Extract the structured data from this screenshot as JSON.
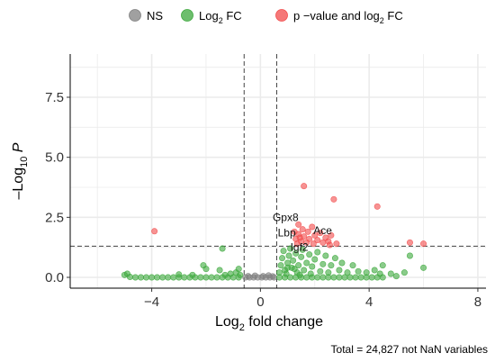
{
  "chart_data": {
    "type": "scatter",
    "xlabel_main": "Log",
    "xlabel_sub": "2",
    "xlabel_tail": " fold change",
    "ylabel_lead": "–Log",
    "ylabel_sub": "10",
    "ylabel_tail": " P",
    "caption": "Total = 24,827 not NaN variables",
    "xlim": [
      -7,
      8.3
    ],
    "ylim": [
      -0.45,
      9.3
    ],
    "x_ticks": [
      -4,
      0,
      4,
      8
    ],
    "x_tick_labels": [
      "−4",
      "0",
      "4",
      "8"
    ],
    "y_ticks": [
      0.0,
      2.5,
      5.0,
      7.5
    ],
    "y_tick_labels": [
      "0.0",
      "2.5",
      "5.0",
      "7.5"
    ],
    "fc_cutoffs": [
      -0.6,
      0.6
    ],
    "p_cutoff": 1.3,
    "grid": true,
    "legend_position": "top",
    "legend": [
      {
        "key": "ns",
        "parts": [
          [
            "NS",
            ""
          ]
        ],
        "color": "#808080"
      },
      {
        "key": "fc",
        "parts": [
          [
            "Log",
            ""
          ],
          [
            "2",
            "sub"
          ],
          [
            " FC",
            ""
          ]
        ],
        "color": "#3ca83c"
      },
      {
        "key": "both",
        "parts": [
          [
            "p −value and log",
            ""
          ],
          [
            "2",
            "sub"
          ],
          [
            " FC",
            ""
          ]
        ],
        "color": "#f24b4b"
      }
    ],
    "colors": {
      "ns": "#808080",
      "fc": "#3ca83c",
      "both": "#f24b4b",
      "grid": "#ebebeb",
      "cutoff": "#444444"
    },
    "series": [
      {
        "name": "NS",
        "color": "#808080",
        "points": [
          [
            -0.55,
            0.0
          ],
          [
            -0.4,
            0.0
          ],
          [
            -0.25,
            0.0
          ],
          [
            -0.1,
            0.0
          ],
          [
            0.05,
            0.0
          ],
          [
            0.2,
            0.0
          ],
          [
            0.35,
            0.0
          ],
          [
            0.5,
            0.0
          ],
          [
            -0.45,
            0.05
          ],
          [
            -0.2,
            0.07
          ],
          [
            0.1,
            0.05
          ],
          [
            0.3,
            0.08
          ],
          [
            0.45,
            0.04
          ]
        ]
      },
      {
        "name": "Log2 FC",
        "color": "#3ca83c",
        "points": [
          [
            -5.0,
            0.1
          ],
          [
            -4.8,
            0.02
          ],
          [
            -4.6,
            0.0
          ],
          [
            -4.4,
            0.0
          ],
          [
            -4.2,
            0.0
          ],
          [
            -4.0,
            0.0
          ],
          [
            -3.8,
            0.0
          ],
          [
            -3.6,
            0.0
          ],
          [
            -3.4,
            0.0
          ],
          [
            -3.2,
            0.0
          ],
          [
            -3.0,
            0.0
          ],
          [
            -2.8,
            0.0
          ],
          [
            -2.6,
            0.0
          ],
          [
            -2.4,
            0.0
          ],
          [
            -2.2,
            0.0
          ],
          [
            -2.0,
            0.0
          ],
          [
            -1.8,
            0.0
          ],
          [
            -1.6,
            0.0
          ],
          [
            -1.4,
            0.0
          ],
          [
            -1.2,
            0.0
          ],
          [
            -1.0,
            0.0
          ],
          [
            -0.8,
            0.0
          ],
          [
            -4.9,
            0.15
          ],
          [
            -3.0,
            0.12
          ],
          [
            -2.5,
            0.1
          ],
          [
            -2.1,
            0.5
          ],
          [
            -2.0,
            0.35
          ],
          [
            -1.5,
            0.3
          ],
          [
            -1.3,
            0.1
          ],
          [
            -1.1,
            0.15
          ],
          [
            -0.9,
            0.2
          ],
          [
            -0.75,
            0.1
          ],
          [
            -1.4,
            1.2
          ],
          [
            -0.8,
            0.35
          ],
          [
            0.7,
            0.0
          ],
          [
            0.9,
            0.0
          ],
          [
            1.1,
            0.0
          ],
          [
            1.3,
            0.0
          ],
          [
            1.5,
            0.0
          ],
          [
            1.7,
            0.0
          ],
          [
            1.9,
            0.0
          ],
          [
            2.1,
            0.0
          ],
          [
            2.3,
            0.0
          ],
          [
            2.5,
            0.0
          ],
          [
            2.7,
            0.0
          ],
          [
            2.9,
            0.0
          ],
          [
            3.1,
            0.0
          ],
          [
            3.3,
            0.0
          ],
          [
            3.5,
            0.0
          ],
          [
            3.7,
            0.0
          ],
          [
            3.9,
            0.0
          ],
          [
            4.1,
            0.0
          ],
          [
            4.3,
            0.0
          ],
          [
            4.5,
            0.0
          ],
          [
            0.7,
            0.2
          ],
          [
            0.75,
            0.5
          ],
          [
            0.8,
            0.8
          ],
          [
            0.85,
            1.1
          ],
          [
            0.9,
            0.3
          ],
          [
            1.0,
            0.6
          ],
          [
            1.05,
            0.9
          ],
          [
            1.1,
            1.2
          ],
          [
            1.15,
            0.4
          ],
          [
            1.2,
            0.7
          ],
          [
            1.3,
            1.0
          ],
          [
            1.35,
            0.2
          ],
          [
            1.4,
            0.5
          ],
          [
            1.5,
            0.85
          ],
          [
            1.55,
            1.15
          ],
          [
            1.6,
            0.3
          ],
          [
            1.7,
            0.6
          ],
          [
            1.8,
            0.95
          ],
          [
            1.85,
            0.15
          ],
          [
            1.9,
            0.45
          ],
          [
            2.0,
            0.75
          ],
          [
            2.1,
            1.05
          ],
          [
            2.2,
            0.25
          ],
          [
            2.3,
            0.55
          ],
          [
            2.4,
            0.9
          ],
          [
            2.5,
            0.2
          ],
          [
            2.6,
            0.5
          ],
          [
            2.75,
            0.8
          ],
          [
            2.9,
            0.3
          ],
          [
            3.0,
            0.6
          ],
          [
            3.2,
            0.2
          ],
          [
            3.4,
            0.5
          ],
          [
            3.6,
            0.25
          ],
          [
            3.9,
            0.2
          ],
          [
            4.2,
            0.3
          ],
          [
            4.4,
            0.15
          ],
          [
            4.5,
            0.5
          ],
          [
            4.8,
            0.15
          ],
          [
            5.0,
            0.05
          ],
          [
            5.3,
            0.2
          ],
          [
            5.5,
            0.9
          ],
          [
            6.0,
            0.4
          ],
          [
            1.0,
            0.4
          ],
          [
            1.25,
            0.35
          ],
          [
            0.95,
            0.15
          ],
          [
            1.45,
            0.1
          ]
        ]
      },
      {
        "name": "p-value and log2 FC",
        "color": "#f24b4b",
        "points": [
          [
            -3.9,
            1.92
          ],
          [
            1.6,
            3.8
          ],
          [
            2.7,
            3.25
          ],
          [
            4.3,
            2.95
          ],
          [
            1.4,
            2.2
          ],
          [
            1.25,
            1.9
          ],
          [
            1.3,
            1.6
          ],
          [
            1.4,
            1.8
          ],
          [
            1.5,
            1.5
          ],
          [
            1.55,
            2.0
          ],
          [
            1.6,
            1.7
          ],
          [
            1.7,
            1.45
          ],
          [
            1.75,
            1.9
          ],
          [
            1.8,
            1.6
          ],
          [
            1.9,
            2.1
          ],
          [
            1.95,
            1.4
          ],
          [
            2.0,
            1.75
          ],
          [
            2.1,
            1.55
          ],
          [
            2.2,
            1.85
          ],
          [
            2.3,
            1.45
          ],
          [
            2.4,
            1.65
          ],
          [
            2.5,
            1.5
          ],
          [
            2.55,
            1.35
          ],
          [
            2.6,
            1.75
          ],
          [
            2.8,
            1.4
          ],
          [
            1.35,
            1.4
          ],
          [
            1.45,
            1.65
          ],
          [
            5.5,
            1.45
          ],
          [
            6.0,
            1.4
          ]
        ]
      }
    ],
    "annotations": [
      {
        "text": "Gpx8",
        "x": 1.4,
        "y": 2.2,
        "ha": "end"
      },
      {
        "text": "Ace",
        "x": 1.95,
        "y": 1.65,
        "ha": "start"
      },
      {
        "text": "Lbp",
        "x": 1.3,
        "y": 1.55,
        "ha": "end"
      },
      {
        "text": "Igf2",
        "x": 1.1,
        "y": 0.95,
        "ha": "start"
      }
    ]
  }
}
